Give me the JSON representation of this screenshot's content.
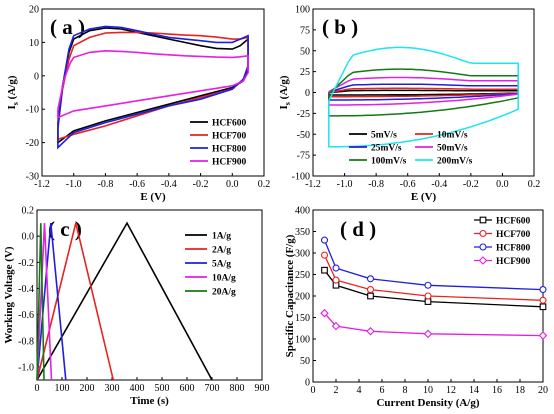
{
  "colors": {
    "black": "#000000",
    "red": "#e8231f",
    "blue": "#1f1fe0",
    "magenta": "#e61ee6",
    "green": "#127a12",
    "cyan": "#19e6f0"
  },
  "chart_data": [
    {
      "id": "a",
      "type": "line",
      "tag": "( a )",
      "xlabel": "E (V)",
      "ylabel": "I",
      "ylabel_sub": "s",
      "ylabel_unit": " (A/g)",
      "xlim": [
        -1.2,
        0.2
      ],
      "ylim": [
        -30,
        20
      ],
      "xticks": [
        "-1.2",
        "-1.0",
        "-0.8",
        "-0.6",
        "-0.4",
        "-0.2",
        "0.0",
        "0.2"
      ],
      "yticks": [
        "-30",
        "-20",
        "-10",
        "0",
        "10",
        "20"
      ],
      "legend_position": "lower-right",
      "series": [
        {
          "name": "HCF600",
          "color": "black",
          "x_start": -1.1,
          "x_end": 0.1,
          "upper": [
            [
              -1.1,
              -14
            ],
            [
              -1.07,
              -3
            ],
            [
              -1.03,
              7
            ],
            [
              -1.0,
              11
            ],
            [
              -0.9,
              13.5
            ],
            [
              -0.8,
              14.3
            ],
            [
              -0.7,
              14
            ],
            [
              -0.6,
              13
            ],
            [
              -0.5,
              12
            ],
            [
              -0.4,
              11
            ],
            [
              -0.3,
              10
            ],
            [
              -0.2,
              9
            ],
            [
              -0.1,
              8.2
            ],
            [
              0.0,
              8
            ],
            [
              0.05,
              9
            ],
            [
              0.1,
              11
            ]
          ],
          "lower": [
            [
              -1.1,
              -20
            ],
            [
              -1.0,
              -16.5
            ],
            [
              -0.8,
              -13.5
            ],
            [
              -0.6,
              -11
            ],
            [
              -0.4,
              -8.5
            ],
            [
              -0.2,
              -6
            ],
            [
              0.0,
              -3.5
            ],
            [
              0.07,
              -1.5
            ],
            [
              0.1,
              2
            ]
          ]
        },
        {
          "name": "HCF700",
          "color": "red",
          "x_start": -1.1,
          "x_end": 0.1,
          "upper": [
            [
              -1.1,
              -15
            ],
            [
              -1.07,
              -4
            ],
            [
              -1.03,
              5
            ],
            [
              -1.0,
              9
            ],
            [
              -0.9,
              11.5
            ],
            [
              -0.8,
              12.8
            ],
            [
              -0.7,
              13
            ],
            [
              -0.6,
              13
            ],
            [
              -0.5,
              12.8
            ],
            [
              -0.4,
              12.5
            ],
            [
              -0.3,
              12.2
            ],
            [
              -0.2,
              12
            ],
            [
              -0.1,
              11.6
            ],
            [
              0.0,
              11
            ],
            [
              0.05,
              11
            ],
            [
              0.1,
              11.5
            ]
          ],
          "lower": [
            [
              -1.1,
              -19
            ],
            [
              -1.0,
              -17.5
            ],
            [
              -0.8,
              -15
            ],
            [
              -0.6,
              -12
            ],
            [
              -0.4,
              -9
            ],
            [
              -0.2,
              -6.5
            ],
            [
              0.0,
              -4
            ],
            [
              0.07,
              -1
            ],
            [
              0.1,
              3
            ]
          ]
        },
        {
          "name": "HCF800",
          "color": "blue",
          "x_start": -1.1,
          "x_end": 0.1,
          "upper": [
            [
              -1.1,
              -16
            ],
            [
              -1.07,
              -3
            ],
            [
              -1.03,
              8
            ],
            [
              -1.0,
              12
            ],
            [
              -0.9,
              14
            ],
            [
              -0.8,
              14.8
            ],
            [
              -0.7,
              14.5
            ],
            [
              -0.6,
              13.5
            ],
            [
              -0.5,
              12.5
            ],
            [
              -0.4,
              11.5
            ],
            [
              -0.3,
              11
            ],
            [
              -0.2,
              10.5
            ],
            [
              -0.1,
              10
            ],
            [
              0.0,
              10
            ],
            [
              0.05,
              11
            ],
            [
              0.1,
              12
            ]
          ],
          "lower": [
            [
              -1.1,
              -21.5
            ],
            [
              -1.0,
              -17
            ],
            [
              -0.8,
              -14
            ],
            [
              -0.6,
              -11.5
            ],
            [
              -0.4,
              -9
            ],
            [
              -0.2,
              -7
            ],
            [
              0.0,
              -4
            ],
            [
              0.07,
              -1
            ],
            [
              0.1,
              3
            ]
          ]
        },
        {
          "name": "HCF900",
          "color": "magenta",
          "x_start": -1.1,
          "x_end": 0.1,
          "upper": [
            [
              -1.1,
              -10
            ],
            [
              -1.06,
              -1
            ],
            [
              -1.02,
              4
            ],
            [
              -1.0,
              5.5
            ],
            [
              -0.9,
              7
            ],
            [
              -0.8,
              7.5
            ],
            [
              -0.7,
              7.3
            ],
            [
              -0.6,
              7
            ],
            [
              -0.5,
              6.6
            ],
            [
              -0.4,
              6.3
            ],
            [
              -0.3,
              6
            ],
            [
              -0.2,
              5.8
            ],
            [
              -0.1,
              5.6
            ],
            [
              0.0,
              5.5
            ],
            [
              0.05,
              5.7
            ],
            [
              0.1,
              6
            ]
          ],
          "lower": [
            [
              -1.1,
              -12.5
            ],
            [
              -1.0,
              -10.5
            ],
            [
              -0.8,
              -9
            ],
            [
              -0.6,
              -7.5
            ],
            [
              -0.4,
              -6
            ],
            [
              -0.2,
              -4.5
            ],
            [
              0.0,
              -3
            ],
            [
              0.07,
              -1.5
            ],
            [
              0.1,
              1
            ]
          ]
        }
      ]
    },
    {
      "id": "b",
      "type": "line",
      "tag": "( b )",
      "xlabel": "E (V)",
      "ylabel": "I",
      "ylabel_sub": "s",
      "ylabel_unit": " (A/g)",
      "xlim": [
        -1.2,
        0.2
      ],
      "ylim": [
        -100,
        100
      ],
      "xticks": [
        "-1.2",
        "-1.0",
        "-0.8",
        "-0.6",
        "-0.4",
        "-0.2",
        "0.0",
        "0.2"
      ],
      "yticks": [
        "-100",
        "-75",
        "-50",
        "-25",
        "0",
        "25",
        "50",
        "75",
        "100"
      ],
      "legend_position": "lower-center",
      "legend_columns": 2,
      "series": [
        {
          "name": "5mV/s",
          "color": "black",
          "top": 2,
          "bottom": -3,
          "bump": 0.5
        },
        {
          "name": "10mV/s",
          "color": "red",
          "top": 4,
          "bottom": -5,
          "bump": 1
        },
        {
          "name": "25mV/s",
          "color": "blue",
          "top": 8,
          "bottom": -9,
          "bump": 2
        },
        {
          "name": "50mV/s",
          "color": "magenta",
          "top": 14,
          "bottom": -15,
          "bump": 4
        },
        {
          "name": "100mV/s",
          "color": "green",
          "top": 20,
          "bottom": -28,
          "bump": 8
        },
        {
          "name": "200mV/s",
          "color": "cyan",
          "top": 35,
          "bottom": -65,
          "bump": 19
        }
      ]
    },
    {
      "id": "c",
      "type": "line",
      "tag": "( c )",
      "xlabel": "Time (s)",
      "ylabel": "Working Voltage (V)",
      "xlim": [
        0,
        900
      ],
      "ylim": [
        -1.1,
        0.2
      ],
      "xticks": [
        "0",
        "100",
        "200",
        "300",
        "400",
        "500",
        "600",
        "700",
        "800",
        "900"
      ],
      "yticks": [
        "-1.0",
        "-0.8",
        "-0.6",
        "-0.4",
        "-0.2",
        "0.0",
        "0.2"
      ],
      "ytick_values": [
        -1.0,
        -0.8,
        -0.6,
        -0.4,
        -0.2,
        0.0,
        0.2
      ],
      "legend_position": "upper-right",
      "series": [
        {
          "name": "1A/g",
          "color": "black",
          "points": [
            [
              0,
              -1.1
            ],
            [
              360,
              0.1
            ],
            [
              700,
              -1.1
            ]
          ]
        },
        {
          "name": "2A/g",
          "color": "red",
          "points": [
            [
              0,
              -1.1
            ],
            [
              155,
              0.1
            ],
            [
              305,
              -1.1
            ]
          ]
        },
        {
          "name": "5A/g",
          "color": "blue",
          "points": [
            [
              0,
              -1.1
            ],
            [
              55,
              0.1
            ],
            [
              115,
              -1.1
            ]
          ]
        },
        {
          "name": "10A/g",
          "color": "magenta",
          "points": [
            [
              0,
              -1.1
            ],
            [
              30,
              0.1
            ],
            [
              58,
              -1.1
            ]
          ]
        },
        {
          "name": "20A/g",
          "color": "green",
          "points": [
            [
              0,
              -1.1
            ],
            [
              15,
              0.1
            ],
            [
              28,
              -1.1
            ]
          ]
        }
      ]
    },
    {
      "id": "d",
      "type": "line",
      "tag": "( d )",
      "xlabel": "Current Density (A/g)",
      "ylabel": "Specific Capacitance (F/g)",
      "xlim": [
        0,
        20
      ],
      "ylim": [
        0,
        400
      ],
      "xticks": [
        "0",
        "2",
        "4",
        "6",
        "8",
        "10",
        "12",
        "14",
        "16",
        "18",
        "20"
      ],
      "yticks": [
        "0",
        "50",
        "100",
        "150",
        "200",
        "250",
        "300",
        "350",
        "400"
      ],
      "legend_position": "upper-right",
      "series": [
        {
          "name": "HCF600",
          "color": "black",
          "marker": "square",
          "x": [
            1,
            2,
            5,
            10,
            20
          ],
          "values": [
            260,
            225,
            200,
            187,
            175
          ]
        },
        {
          "name": "HCF700",
          "color": "red",
          "marker": "circle",
          "x": [
            1,
            2,
            5,
            10,
            20
          ],
          "values": [
            295,
            237,
            215,
            200,
            190
          ]
        },
        {
          "name": "HCF800",
          "color": "blue",
          "marker": "circle",
          "x": [
            1,
            2,
            5,
            10,
            20
          ],
          "values": [
            330,
            265,
            240,
            225,
            215
          ]
        },
        {
          "name": "HCF900",
          "color": "magenta",
          "marker": "diamond",
          "x": [
            1,
            2,
            5,
            10,
            20
          ],
          "values": [
            160,
            130,
            118,
            112,
            108
          ]
        }
      ]
    }
  ]
}
